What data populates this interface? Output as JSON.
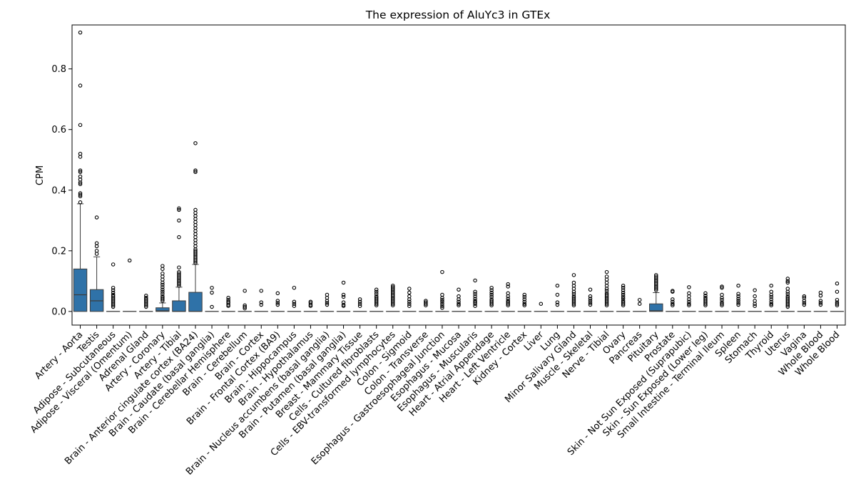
{
  "chart_data": {
    "type": "box",
    "title": "The expression of AluYc3 in GTEx",
    "xlabel": "",
    "ylabel": "CPM",
    "ylim": [
      -0.045,
      0.945
    ],
    "yticks": [
      "0.0",
      "0.2",
      "0.4",
      "0.6",
      "0.8"
    ],
    "colors": {
      "box": "#2f72a8",
      "outlier": "#000000",
      "axis": "#000000"
    },
    "series": [
      {
        "name": "Artery - Aorta",
        "q1": 0,
        "median": 0.055,
        "q3": 0.14,
        "whislo": 0,
        "whishi": 0.355,
        "fliers": [
          0.92,
          0.745,
          0.615,
          0.52,
          0.51,
          0.465,
          0.46,
          0.445,
          0.435,
          0.425,
          0.42,
          0.39,
          0.385,
          0.38,
          0.36
        ]
      },
      {
        "name": "Testis",
        "q1": 0,
        "median": 0.035,
        "q3": 0.072,
        "whislo": 0,
        "whishi": 0.18,
        "fliers": [
          0.31,
          0.225,
          0.215,
          0.2,
          0.19
        ]
      },
      {
        "name": "Adipose - Subcutaneous",
        "q1": 0,
        "median": 0,
        "q3": 0,
        "whislo": 0,
        "whishi": 0,
        "fliers": [
          0.155,
          0.078,
          0.07,
          0.062,
          0.055,
          0.05,
          0.045,
          0.04,
          0.035,
          0.03,
          0.025,
          0.02,
          0.015
        ]
      },
      {
        "name": "Adipose - Visceral (Omentum)",
        "q1": 0,
        "median": 0,
        "q3": 0,
        "whislo": 0,
        "whishi": 0,
        "fliers": [
          0.168
        ]
      },
      {
        "name": "Adrenal Gland",
        "q1": 0,
        "median": 0,
        "q3": 0,
        "whislo": 0,
        "whishi": 0,
        "fliers": [
          0.052,
          0.045,
          0.04,
          0.035,
          0.03,
          0.025,
          0.02,
          0.015
        ]
      },
      {
        "name": "Artery - Coronary",
        "q1": 0,
        "median": 0.002,
        "q3": 0.012,
        "whislo": 0,
        "whishi": 0.028,
        "fliers": [
          0.15,
          0.14,
          0.125,
          0.115,
          0.105,
          0.095,
          0.088,
          0.08,
          0.072,
          0.065,
          0.058,
          0.05,
          0.045,
          0.04,
          0.035
        ]
      },
      {
        "name": "Artery - Tibial",
        "q1": 0,
        "median": 0,
        "q3": 0.035,
        "whislo": 0,
        "whishi": 0.08,
        "fliers": [
          0.34,
          0.335,
          0.3,
          0.245,
          0.145,
          0.13,
          0.125,
          0.12,
          0.115,
          0.11,
          0.105,
          0.1,
          0.095,
          0.09,
          0.085
        ]
      },
      {
        "name": "Brain - Anterior cingulate cortex (BA24)",
        "q1": 0,
        "median": 0,
        "q3": 0.063,
        "whislo": 0,
        "whishi": 0.155,
        "fliers": [
          0.555,
          0.465,
          0.46,
          0.335,
          0.325,
          0.315,
          0.305,
          0.295,
          0.285,
          0.275,
          0.265,
          0.255,
          0.245,
          0.235,
          0.225,
          0.215,
          0.205,
          0.2,
          0.195,
          0.19,
          0.185,
          0.18,
          0.175,
          0.17,
          0.165,
          0.16
        ]
      },
      {
        "name": "Brain - Caudate (basal ganglia)",
        "q1": 0,
        "median": 0,
        "q3": 0,
        "whislo": 0,
        "whishi": 0,
        "fliers": [
          0.078,
          0.062,
          0.015
        ]
      },
      {
        "name": "Brain - Cerebellar Hemisphere",
        "q1": 0,
        "median": 0,
        "q3": 0,
        "whislo": 0,
        "whishi": 0,
        "fliers": [
          0.045,
          0.038,
          0.032,
          0.028,
          0.022,
          0.018
        ]
      },
      {
        "name": "Brain - Cerebellum",
        "q1": 0,
        "median": 0,
        "q3": 0,
        "whislo": 0,
        "whishi": 0,
        "fliers": [
          0.068,
          0.02,
          0.015,
          0.01
        ]
      },
      {
        "name": "Brain - Cortex",
        "q1": 0,
        "median": 0,
        "q3": 0,
        "whislo": 0,
        "whishi": 0,
        "fliers": [
          0.068,
          0.03,
          0.022
        ]
      },
      {
        "name": "Brain - Frontal Cortex (BA9)",
        "q1": 0,
        "median": 0,
        "q3": 0,
        "whislo": 0,
        "whishi": 0,
        "fliers": [
          0.06,
          0.035,
          0.028,
          0.022
        ]
      },
      {
        "name": "Brain - Hippocampus",
        "q1": 0,
        "median": 0,
        "q3": 0,
        "whislo": 0,
        "whishi": 0,
        "fliers": [
          0.078,
          0.032,
          0.025,
          0.018
        ]
      },
      {
        "name": "Brain - Hypothalamus",
        "q1": 0,
        "median": 0,
        "q3": 0,
        "whislo": 0,
        "whishi": 0,
        "fliers": [
          0.032,
          0.028,
          0.022,
          0.018
        ]
      },
      {
        "name": "Brain - Nucleus accumbens (basal ganglia)",
        "q1": 0,
        "median": 0,
        "q3": 0,
        "whislo": 0,
        "whishi": 0,
        "fliers": [
          0.055,
          0.045,
          0.035,
          0.028,
          0.022
        ]
      },
      {
        "name": "Brain - Putamen (basal ganglia)",
        "q1": 0,
        "median": 0,
        "q3": 0,
        "whislo": 0,
        "whishi": 0,
        "fliers": [
          0.095,
          0.055,
          0.048,
          0.03,
          0.022,
          0.018
        ]
      },
      {
        "name": "Breast - Mammary Tissue",
        "q1": 0,
        "median": 0,
        "q3": 0,
        "whislo": 0,
        "whishi": 0,
        "fliers": [
          0.04,
          0.032,
          0.025,
          0.018
        ]
      },
      {
        "name": "Cells - Cultured fibroblasts",
        "q1": 0,
        "median": 0,
        "q3": 0,
        "whislo": 0,
        "whishi": 0,
        "fliers": [
          0.072,
          0.065,
          0.058,
          0.05,
          0.045,
          0.04,
          0.035,
          0.03,
          0.025,
          0.02
        ]
      },
      {
        "name": "Cells - EBV-transformed lymphocytes",
        "q1": 0,
        "median": 0,
        "q3": 0,
        "whislo": 0,
        "whishi": 0,
        "fliers": [
          0.085,
          0.08,
          0.075,
          0.07,
          0.065,
          0.06,
          0.055,
          0.05,
          0.045,
          0.04,
          0.035,
          0.03,
          0.025,
          0.02
        ]
      },
      {
        "name": "Colon - Sigmoid",
        "q1": 0,
        "median": 0,
        "q3": 0,
        "whislo": 0,
        "whishi": 0,
        "fliers": [
          0.075,
          0.062,
          0.05,
          0.04,
          0.032,
          0.025,
          0.018
        ]
      },
      {
        "name": "Colon - Transverse",
        "q1": 0,
        "median": 0,
        "q3": 0,
        "whislo": 0,
        "whishi": 0,
        "fliers": [
          0.035,
          0.03,
          0.025,
          0.02
        ]
      },
      {
        "name": "Esophagus - Gastroesophageal Junction",
        "q1": 0,
        "median": 0,
        "q3": 0,
        "whislo": 0,
        "whishi": 0,
        "fliers": [
          0.13,
          0.055,
          0.045,
          0.038,
          0.032,
          0.025,
          0.018,
          0.012
        ]
      },
      {
        "name": "Esophagus - Mucosa",
        "q1": 0,
        "median": 0,
        "q3": 0,
        "whislo": 0,
        "whishi": 0,
        "fliers": [
          0.072,
          0.05,
          0.04,
          0.032,
          0.025,
          0.02
        ]
      },
      {
        "name": "Esophagus - Muscularis",
        "q1": 0,
        "median": 0,
        "q3": 0,
        "whislo": 0,
        "whishi": 0,
        "fliers": [
          0.102,
          0.065,
          0.058,
          0.05,
          0.042,
          0.035,
          0.03,
          0.025,
          0.018
        ]
      },
      {
        "name": "Heart - Atrial Appendage",
        "q1": 0,
        "median": 0,
        "q3": 0,
        "whislo": 0,
        "whishi": 0,
        "fliers": [
          0.078,
          0.07,
          0.062,
          0.055,
          0.048,
          0.04,
          0.035,
          0.03,
          0.025,
          0.02
        ]
      },
      {
        "name": "Heart - Left Ventricle",
        "q1": 0,
        "median": 0,
        "q3": 0,
        "whislo": 0,
        "whishi": 0,
        "fliers": [
          0.09,
          0.082,
          0.06,
          0.05,
          0.042,
          0.035,
          0.03,
          0.025,
          0.02
        ]
      },
      {
        "name": "Kidney - Cortex",
        "q1": 0,
        "median": 0,
        "q3": 0,
        "whislo": 0,
        "whishi": 0,
        "fliers": [
          0.055,
          0.048,
          0.04,
          0.032,
          0.025,
          0.02
        ]
      },
      {
        "name": "Liver",
        "q1": 0,
        "median": 0,
        "q3": 0,
        "whislo": 0,
        "whishi": 0,
        "fliers": [
          0.025
        ]
      },
      {
        "name": "Lung",
        "q1": 0,
        "median": 0,
        "q3": 0,
        "whislo": 0,
        "whishi": 0,
        "fliers": [
          0.085,
          0.055,
          0.03,
          0.022
        ]
      },
      {
        "name": "Minor Salivary Gland",
        "q1": 0,
        "median": 0,
        "q3": 0,
        "whislo": 0,
        "whishi": 0,
        "fliers": [
          0.12,
          0.095,
          0.085,
          0.075,
          0.065,
          0.058,
          0.05,
          0.045,
          0.04,
          0.035,
          0.03,
          0.025,
          0.02
        ]
      },
      {
        "name": "Muscle - Skeletal",
        "q1": 0,
        "median": 0,
        "q3": 0,
        "whislo": 0,
        "whishi": 0,
        "fliers": [
          0.072,
          0.05,
          0.042,
          0.035,
          0.028,
          0.022
        ]
      },
      {
        "name": "Nerve - Tibial",
        "q1": 0,
        "median": 0,
        "q3": 0,
        "whislo": 0,
        "whishi": 0,
        "fliers": [
          0.13,
          0.115,
          0.105,
          0.095,
          0.085,
          0.075,
          0.068,
          0.06,
          0.055,
          0.05,
          0.045,
          0.04,
          0.035,
          0.03,
          0.025,
          0.02
        ]
      },
      {
        "name": "Ovary",
        "q1": 0,
        "median": 0,
        "q3": 0,
        "whislo": 0,
        "whishi": 0,
        "fliers": [
          0.085,
          0.078,
          0.07,
          0.062,
          0.055,
          0.048,
          0.042,
          0.035,
          0.03,
          0.025,
          0.02
        ]
      },
      {
        "name": "Pancreas",
        "q1": 0,
        "median": 0,
        "q3": 0,
        "whislo": 0,
        "whishi": 0,
        "fliers": [
          0.038,
          0.025
        ]
      },
      {
        "name": "Pituitary",
        "q1": 0,
        "median": 0.002,
        "q3": 0.025,
        "whislo": 0,
        "whishi": 0.062,
        "fliers": [
          0.12,
          0.115,
          0.11,
          0.105,
          0.1,
          0.095,
          0.09,
          0.085,
          0.08,
          0.075,
          0.07
        ]
      },
      {
        "name": "Prostate",
        "q1": 0,
        "median": 0,
        "q3": 0,
        "whislo": 0,
        "whishi": 0,
        "fliers": [
          0.068,
          0.065,
          0.04,
          0.032,
          0.025,
          0.02
        ]
      },
      {
        "name": "Skin - Not Sun Exposed (Suprapubic)",
        "q1": 0,
        "median": 0,
        "q3": 0,
        "whislo": 0,
        "whishi": 0,
        "fliers": [
          0.08,
          0.06,
          0.05,
          0.04,
          0.032,
          0.025,
          0.02
        ]
      },
      {
        "name": "Skin - Sun Exposed (Lower leg)",
        "q1": 0,
        "median": 0,
        "q3": 0,
        "whislo": 0,
        "whishi": 0,
        "fliers": [
          0.06,
          0.052,
          0.045,
          0.04,
          0.035,
          0.03,
          0.025,
          0.02
        ]
      },
      {
        "name": "Small Intestine - Terminal Ileum",
        "q1": 0,
        "median": 0,
        "q3": 0,
        "whislo": 0,
        "whishi": 0,
        "fliers": [
          0.082,
          0.078,
          0.055,
          0.045,
          0.038,
          0.03,
          0.025,
          0.02
        ]
      },
      {
        "name": "Spleen",
        "q1": 0,
        "median": 0,
        "q3": 0,
        "whislo": 0,
        "whishi": 0,
        "fliers": [
          0.085,
          0.058,
          0.05,
          0.042,
          0.035,
          0.028,
          0.022
        ]
      },
      {
        "name": "Stomach",
        "q1": 0,
        "median": 0,
        "q3": 0,
        "whislo": 0,
        "whishi": 0,
        "fliers": [
          0.07,
          0.05,
          0.035,
          0.025,
          0.018
        ]
      },
      {
        "name": "Thyroid",
        "q1": 0,
        "median": 0,
        "q3": 0,
        "whislo": 0,
        "whishi": 0,
        "fliers": [
          0.085,
          0.065,
          0.055,
          0.048,
          0.04,
          0.032,
          0.025,
          0.02
        ]
      },
      {
        "name": "Uterus",
        "q1": 0,
        "median": 0,
        "q3": 0,
        "whislo": 0,
        "whishi": 0,
        "fliers": [
          0.108,
          0.1,
          0.095,
          0.075,
          0.065,
          0.058,
          0.05,
          0.045,
          0.04,
          0.035,
          0.03,
          0.025,
          0.02,
          0.015
        ]
      },
      {
        "name": "Vagina",
        "q1": 0,
        "median": 0,
        "q3": 0,
        "whislo": 0,
        "whishi": 0,
        "fliers": [
          0.05,
          0.045,
          0.035,
          0.028,
          0.022
        ]
      },
      {
        "name": "Whole Blood",
        "q1": 0,
        "median": 0,
        "q3": 0,
        "whislo": 0,
        "whishi": 0,
        "fliers": [
          0.062,
          0.052,
          0.035,
          0.028,
          0.022
        ]
      },
      {
        "name": "Whole Blood ",
        "q1": 0,
        "median": 0,
        "q3": 0,
        "whislo": 0,
        "whishi": 0,
        "fliers": [
          0.092,
          0.065,
          0.038,
          0.03,
          0.025,
          0.02
        ]
      }
    ]
  }
}
